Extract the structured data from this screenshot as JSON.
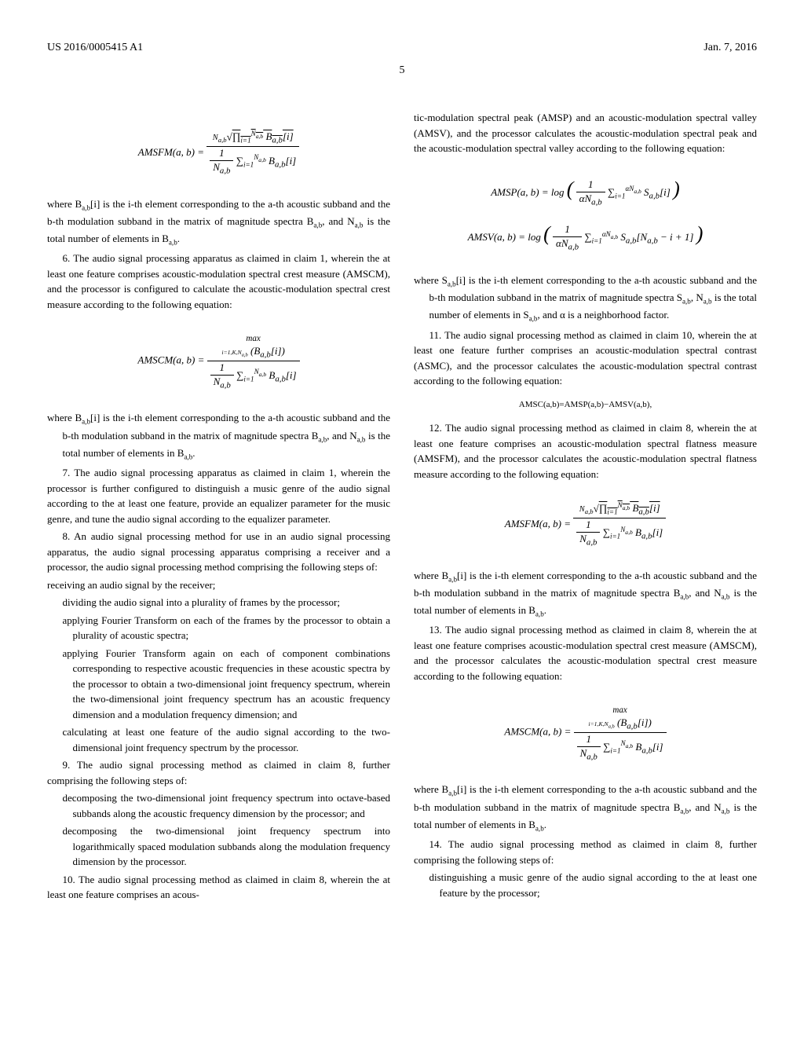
{
  "header": {
    "pub_number": "US 2016/0005415 A1",
    "pub_date": "Jan. 7, 2016"
  },
  "page_number": "5",
  "left": {
    "p1": "where B",
    "p1_sub": "a,b",
    "p1_cont": "[i] is the i-th element corresponding to the a-th acoustic subband and the b-th modulation subband in the matrix of magnitude spectra B",
    "p1_sub2": "a,b",
    "p1_cont2": ", and N",
    "p1_sub3": "a,b",
    "p1_cont3": " is the total number of elements in B",
    "p1_sub4": "a,b",
    "p1_end": ".",
    "claim6": "6. The audio signal processing apparatus as claimed in claim 1, wherein the at least one feature comprises acoustic-modulation spectral crest measure (AMSCM), and the processor is configured to calculate the acoustic-modulation spectral crest measure according to the following equation:",
    "p2": "where B",
    "p2_cont": "[i] is the i-th element corresponding to the a-th acoustic subband and the b-th modulation subband in the matrix of magnitude spectra B",
    "p2_cont2": ", and N",
    "p2_cont3": " is the total number of elements in B",
    "claim7": "7. The audio signal processing apparatus as claimed in claim 1, wherein the processor is further configured to distinguish a music genre of the audio signal according to the at least one feature, provide an equalizer parameter for the music genre, and tune the audio signal according to the equalizer parameter.",
    "claim8": "8. An audio signal processing method for use in an audio signal processing apparatus, the audio signal processing apparatus comprising a receiver and a processor, the audio signal processing method comprising the following steps of:",
    "claim8_a": "receiving an audio signal by the receiver;",
    "claim8_b": "dividing the audio signal into a plurality of frames by the processor;",
    "claim8_c": "applying Fourier Transform on each of the frames by the processor to obtain a plurality of acoustic spectra;",
    "claim8_d": "applying Fourier Transform again on each of component combinations corresponding to respective acoustic frequencies in these acoustic spectra by the processor to obtain a two-dimensional joint frequency spectrum, wherein the two-dimensional joint frequency spectrum has an acoustic frequency dimension and a modulation frequency dimension; and",
    "claim8_e": "calculating at least one feature of the audio signal according to the two-dimensional joint frequency spectrum by the processor.",
    "claim9": "9. The audio signal processing method as claimed in claim 8, further comprising the following steps of:",
    "claim9_a": "decomposing the two-dimensional joint frequency spectrum into octave-based subbands along the acoustic frequency dimension by the processor; and",
    "claim9_b": "decomposing the two-dimensional joint frequency spectrum into logarithmically spaced modulation subbands along the modulation frequency dimension by the processor.",
    "claim10": "10. The audio signal processing method as claimed in claim 8, wherein the at least one feature comprises an acous-"
  },
  "right": {
    "p1": "tic-modulation spectral peak (AMSP) and an acoustic-modulation spectral valley (AMSV), and the processor calculates the acoustic-modulation spectral peak and the acoustic-modulation spectral valley according to the following equation:",
    "p2": "where S",
    "p2_cont": "[i] is the i-th element corresponding to the a-th acoustic subband and the b-th modulation subband in the matrix of magnitude spectra S",
    "p2_cont2": ", N",
    "p2_cont3": " is the total number of elements in S",
    "p2_cont4": ", and α is a neighborhood factor.",
    "claim11": "11. The audio signal processing method as claimed in claim 10, wherein the at least one feature further comprises an acoustic-modulation spectral contrast (ASMC), and the processor calculates the acoustic-modulation spectral contrast according to the following equation:",
    "eq_amsc": "AMSC(a,b)=AMSP(a,b)−AMSV(a,b),",
    "claim12": "12. The audio signal processing method as claimed in claim 8, wherein the at least one feature comprises an acoustic-modulation spectral flatness measure (AMSFM), and the processor calculates the acoustic-modulation spectral flatness measure according to the following equation:",
    "p3": "where B",
    "p3_cont": "[i] is the i-th element corresponding to the a-th acoustic subband and the b-th modulation subband in the matrix of magnitude spectra B",
    "p3_cont2": ", and N",
    "p3_cont3": " is the total number of elements in B",
    "claim13": "13. The audio signal processing method as claimed in claim 8, wherein the at least one feature comprises acoustic-modulation spectral crest measure (AMSCM), and the processor calculates the acoustic-modulation spectral crest measure according to the following equation:",
    "p4": "where B",
    "p4_cont": "[i] is the i-th element corresponding to the a-th acoustic subband and the b-th modulation subband in the matrix of magnitude spectra B",
    "p4_cont2": ", and N",
    "p4_cont3": " is the total number of elements in B",
    "claim14": "14. The audio signal processing method as claimed in claim 8, further comprising the following steps of:",
    "claim14_a": "distinguishing a music genre of the audio signal according to the at least one feature by the processor;"
  },
  "formulas": {
    "amsfm": "AMSFM(a, b) =",
    "amscm": "AMSCM(a, b) =",
    "amsp": "AMSP(a, b) = log",
    "amsv": "AMSV(a, b) = log"
  }
}
